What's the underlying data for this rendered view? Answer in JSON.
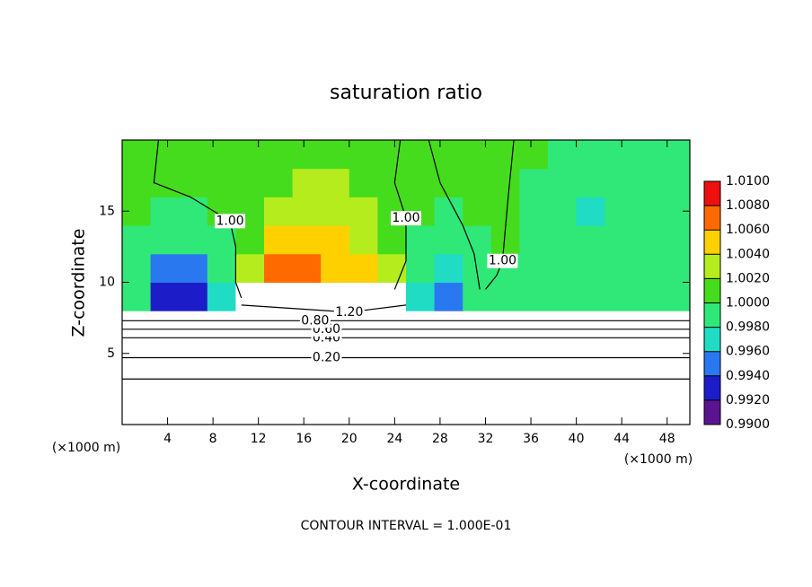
{
  "chart_data": {
    "type": "contour",
    "title": "saturation ratio",
    "x_label": "X-coordinate",
    "y_label": "Z-coordinate",
    "x_unit": "(×1000 m)",
    "y_unit": "(×1000 m)",
    "footer": "CONTOUR INTERVAL = 1.000E-01",
    "xlim": [
      0,
      50
    ],
    "ylim": [
      0,
      20
    ],
    "xticks": [
      4,
      8,
      12,
      16,
      20,
      24,
      28,
      32,
      36,
      40,
      44,
      48
    ],
    "yticks": [
      5,
      10,
      15
    ],
    "field": {
      "x_edges": [
        0,
        2.5,
        5,
        7.5,
        10,
        12.5,
        15,
        17.5,
        20,
        22.5,
        25,
        27.5,
        30,
        32.5,
        35,
        37.5,
        40,
        42.5,
        45,
        47.5,
        50
      ],
      "z_edges": [
        6,
        8,
        10,
        12,
        14,
        16,
        18,
        20
      ],
      "values": [
        [
          0.95,
          0.95,
          0.95,
          0.95,
          0.95,
          0.95,
          0.95,
          0.95,
          0.95,
          0.95,
          0.95,
          0.95,
          0.95,
          0.95,
          0.95,
          0.95,
          0.95,
          0.95,
          0.95,
          0.95
        ],
        [
          0.9985,
          0.9935,
          0.992,
          0.997,
          1.2,
          1.2,
          1.2,
          1.2,
          1.2,
          1.2,
          0.996,
          0.994,
          0.998,
          0.9995,
          0.999,
          0.999,
          0.9995,
          0.9995,
          0.9995,
          0.9995
        ],
        [
          0.999,
          0.995,
          0.995,
          0.998,
          1.003,
          1.007,
          1.006,
          1.005,
          1.004,
          1.002,
          0.998,
          0.997,
          0.999,
          0.9995,
          0.999,
          0.998,
          0.998,
          0.9985,
          0.999,
          0.9995
        ],
        [
          0.9995,
          0.998,
          0.998,
          0.9995,
          1.001,
          1.004,
          1.004,
          1.004,
          1.003,
          1.001,
          0.9995,
          0.999,
          0.9995,
          1.0005,
          0.999,
          0.998,
          0.998,
          0.9985,
          0.999,
          0.9995
        ],
        [
          1.0005,
          0.9995,
          0.9995,
          1.0005,
          1.001,
          1.002,
          1.003,
          1.003,
          1.002,
          1.001,
          1.0005,
          0.9995,
          1.0005,
          1.0005,
          0.999,
          0.998,
          0.9975,
          0.998,
          0.999,
          0.9995
        ],
        [
          1.0005,
          1.0005,
          1.0005,
          1.0005,
          1.0005,
          1.001,
          1.002,
          1.002,
          1.001,
          1.0005,
          1.0005,
          1.0005,
          1.0005,
          1.0005,
          0.9995,
          0.999,
          0.999,
          0.9985,
          0.999,
          0.9995
        ],
        [
          1.0005,
          1.0005,
          1.0005,
          1.0005,
          1.0005,
          1.0005,
          1.0005,
          1.0005,
          1.0005,
          1.0005,
          1.0005,
          1.0005,
          1.0005,
          1.0005,
          1.0005,
          0.9995,
          0.9995,
          0.9995,
          0.9995,
          0.9995
        ]
      ]
    },
    "colorbar": {
      "levels": [
        {
          "value": 0.99,
          "label": "0.9900"
        },
        {
          "value": 0.992,
          "label": "0.9920"
        },
        {
          "value": 0.994,
          "label": "0.9940"
        },
        {
          "value": 0.996,
          "label": "0.9960"
        },
        {
          "value": 0.998,
          "label": "0.9980"
        },
        {
          "value": 1.0,
          "label": "1.0000"
        },
        {
          "value": 1.002,
          "label": "1.0020"
        },
        {
          "value": 1.004,
          "label": "1.0040"
        },
        {
          "value": 1.006,
          "label": "1.0060"
        },
        {
          "value": 1.008,
          "label": "1.0080"
        },
        {
          "value": 1.01,
          "label": "1.0100"
        }
      ],
      "colors": [
        "#5b1490",
        "#1c1cc8",
        "#2a78f0",
        "#20dcc4",
        "#30e878",
        "#46dc1e",
        "#b4ec1e",
        "#ffd000",
        "#ff6a00",
        "#ee1010",
        "#ff8c8c"
      ]
    },
    "contours": [
      {
        "label": "0.20",
        "x": [
          0,
          18,
          50
        ],
        "z": [
          4.7,
          4.7,
          4.7
        ]
      },
      {
        "x": [
          0,
          25,
          50
        ],
        "z": [
          3.2,
          3.2,
          3.2
        ]
      },
      {
        "label": "0.40",
        "x": [
          0,
          18,
          50
        ],
        "z": [
          6.1,
          6.1,
          6.1
        ]
      },
      {
        "label": "0.60",
        "x": [
          0,
          18,
          50
        ],
        "z": [
          6.7,
          6.7,
          6.7
        ]
      },
      {
        "label": "0.80",
        "x": [
          0,
          17,
          50
        ],
        "z": [
          7.3,
          7.3,
          7.3
        ]
      },
      {
        "label": "1.20",
        "x": [
          10.5,
          20,
          25
        ],
        "z": [
          8.4,
          7.9,
          8.4
        ]
      },
      {
        "label": "1.00",
        "x": [
          3.2,
          2.8,
          6,
          9.5,
          10,
          10,
          10.5
        ],
        "z": [
          20,
          17,
          16,
          14.3,
          12.5,
          10,
          8.9
        ]
      },
      {
        "label": "1.00",
        "x": [
          24.5,
          24,
          25,
          25,
          24
        ],
        "z": [
          20,
          17,
          14.5,
          11.5,
          9.5
        ]
      },
      {
        "x": [
          27,
          28,
          30,
          31,
          31.5
        ],
        "z": [
          20,
          17,
          14,
          12,
          9.5
        ]
      },
      {
        "label": "1.00",
        "x": [
          34.5,
          34,
          33.5,
          33,
          32
        ],
        "z": [
          20,
          16,
          11.5,
          10.5,
          9.5
        ]
      }
    ]
  }
}
